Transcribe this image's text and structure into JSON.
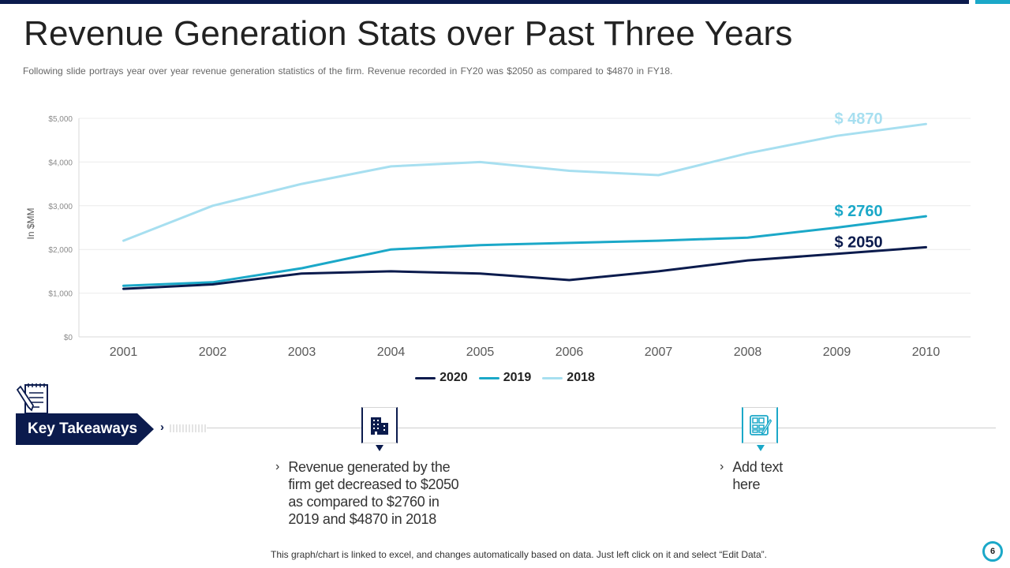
{
  "slide": {
    "title": "Revenue Generation Stats over Past Three Years",
    "subtitle": "Following slide portrays year over year revenue generation statistics of the firm. Revenue recorded in FY20 was $2050 as compared to $4870 in FY18.",
    "footnote": "This graph/chart is linked to excel, and changes automatically based on data. Just left click on it and select “Edit Data”.",
    "page_number": "6"
  },
  "colors": {
    "navy": "#0b1b4d",
    "teal": "#1ba8c8",
    "light_blue": "#a7dff0"
  },
  "chart_data": {
    "type": "line",
    "title": "",
    "xlabel": "",
    "ylabel": "In $MM",
    "categories": [
      "2001",
      "2002",
      "2003",
      "2004",
      "2005",
      "2006",
      "2007",
      "2008",
      "2009",
      "2010"
    ],
    "ylim": [
      0,
      5000
    ],
    "y_ticks": [
      0,
      1000,
      2000,
      3000,
      4000,
      5000
    ],
    "y_tick_labels": [
      "$0",
      "$1,000",
      "$2,000",
      "$3,000",
      "$4,000",
      "$5,000"
    ],
    "grid": true,
    "legend_position": "bottom",
    "series": [
      {
        "name": "2020",
        "color": "#0b1b4d",
        "values": [
          1100,
          1200,
          1450,
          1500,
          1450,
          1300,
          1500,
          1750,
          1900,
          2050
        ],
        "end_label": "$ 2050"
      },
      {
        "name": "2019",
        "color": "#1ba8c8",
        "values": [
          1170,
          1250,
          1570,
          2000,
          2100,
          2150,
          2200,
          2270,
          2500,
          2760
        ],
        "end_label": "$ 2760"
      },
      {
        "name": "2018",
        "color": "#a7dff0",
        "values": [
          2200,
          3000,
          3500,
          3900,
          4000,
          3800,
          3700,
          4200,
          4600,
          4870
        ],
        "end_label": "$ 4870"
      }
    ]
  },
  "takeaways": {
    "banner_label": "Key Takeaways",
    "chevron": "›",
    "items": [
      {
        "icon": "building-icon",
        "bullet": "›",
        "text_lines": [
          "Revenue generated by the",
          "firm get decreased to $2050",
          "as compared to $2760 in",
          "2019 and $4870 in 2018"
        ]
      },
      {
        "icon": "calculator-icon",
        "bullet": "›",
        "text_lines": [
          "Add text",
          "here"
        ]
      }
    ]
  }
}
